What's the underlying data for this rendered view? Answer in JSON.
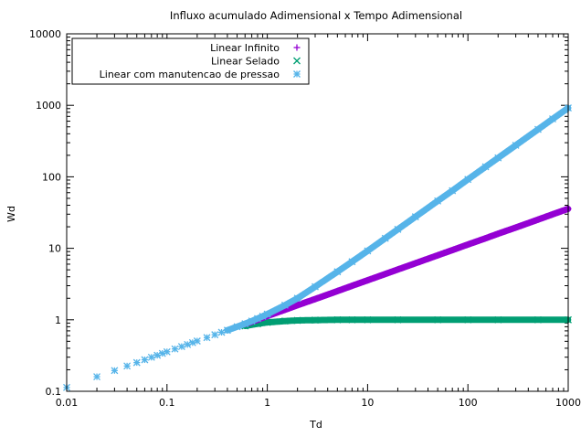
{
  "chart_data": {
    "type": "scatter",
    "title": "Influxo acumulado Adimensional x Tempo Adimensional",
    "xlabel": "Td",
    "ylabel": "Wd",
    "xscale": "log",
    "yscale": "log",
    "xlim": [
      0.01,
      1000
    ],
    "ylim": [
      0.1,
      10000
    ],
    "x_ticks": [
      "0.01",
      "0.1",
      "1",
      "10",
      "100",
      "1000"
    ],
    "y_ticks": [
      "0.1",
      "1",
      "10",
      "100",
      "1000",
      "10000"
    ],
    "grid": false,
    "legend_position": "top-left",
    "series": [
      {
        "name": "Linear Infinito",
        "color": "#9400d3",
        "marker": "plus",
        "x": [
          0.6,
          0.8,
          1,
          1.5,
          2,
          3,
          5,
          7,
          10,
          15,
          20,
          30,
          50,
          70,
          100,
          150,
          200,
          300,
          500,
          700,
          1000
        ],
        "y": [
          0.87,
          1.0,
          1.13,
          1.38,
          1.6,
          1.95,
          2.52,
          2.99,
          3.57,
          4.37,
          5.05,
          6.18,
          7.98,
          9.44,
          11.3,
          13.8,
          16.0,
          19.5,
          25.2,
          29.9,
          35.7
        ]
      },
      {
        "name": "Linear Selado",
        "color": "#009e73",
        "marker": "x",
        "x": [
          0.6,
          0.8,
          1,
          1.5,
          2,
          3,
          5,
          7,
          10,
          20,
          50,
          100,
          200,
          500,
          1000
        ],
        "y": [
          0.82,
          0.88,
          0.92,
          0.96,
          0.98,
          0.99,
          1,
          1,
          1,
          1,
          1,
          1,
          1,
          1,
          1
        ]
      },
      {
        "name": "Linear com manutencao de pressao",
        "color": "#56b4e9",
        "marker": "asterisk",
        "x": [
          0.01,
          0.02,
          0.03,
          0.04,
          0.05,
          0.06,
          0.07,
          0.08,
          0.09,
          0.1,
          0.12,
          0.14,
          0.16,
          0.18,
          0.2,
          0.25,
          0.3,
          0.35,
          0.4,
          0.5,
          0.6,
          0.7,
          0.8,
          0.9,
          1,
          1.5,
          2,
          3,
          5,
          7,
          10,
          15,
          20,
          30,
          50,
          70,
          100,
          150,
          200,
          300,
          500,
          700,
          1000
        ],
        "y": [
          0.113,
          0.16,
          0.195,
          0.226,
          0.252,
          0.276,
          0.299,
          0.319,
          0.339,
          0.357,
          0.391,
          0.422,
          0.451,
          0.479,
          0.505,
          0.564,
          0.618,
          0.668,
          0.714,
          0.8,
          0.88,
          0.96,
          1.04,
          1.12,
          1.2,
          1.6,
          2.0,
          2.9,
          4.7,
          6.5,
          9.2,
          13.8,
          18.4,
          27.6,
          46,
          64,
          92,
          138,
          184,
          276,
          460,
          645,
          920
        ]
      }
    ]
  }
}
